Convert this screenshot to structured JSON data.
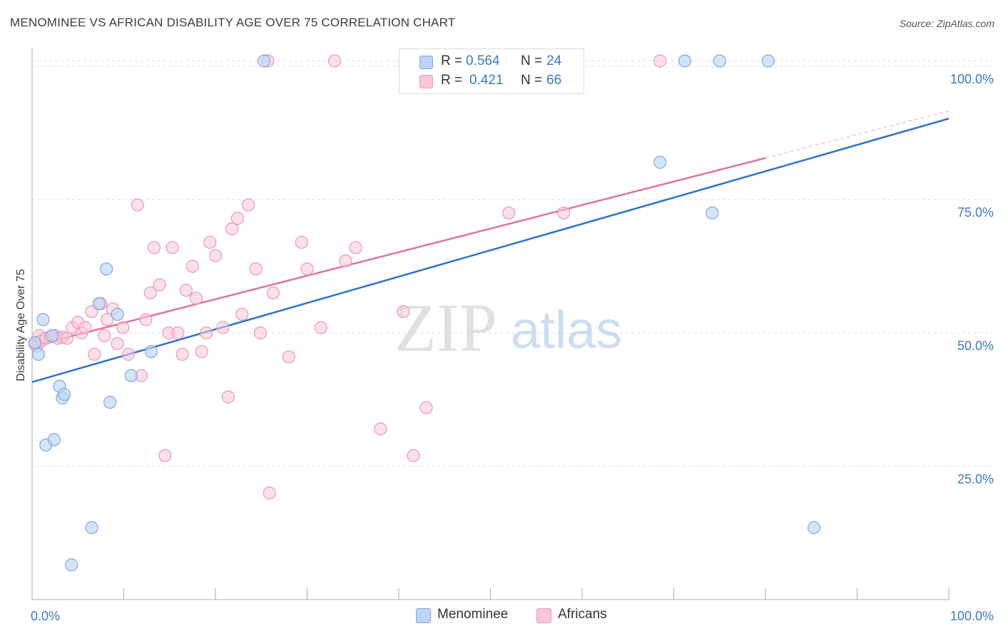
{
  "title": "MENOMINEE VS AFRICAN DISABILITY AGE OVER 75 CORRELATION CHART",
  "source": "Source: ZipAtlas.com",
  "watermark": {
    "zip": "ZIP",
    "atlas": "atlas"
  },
  "colors": {
    "blue_fill": "#bcd5f5",
    "blue_stroke": "#7fa8e0",
    "blue_line": "#2e72c9",
    "pink_fill": "#f8c6d6",
    "pink_stroke": "#eb98b4",
    "pink_line": "#e2709a",
    "grid": "#dddddd",
    "axis": "#aaaaaa",
    "tick_text": "#3d78c9"
  },
  "legend": {
    "rows": [
      {
        "r_label": "R =",
        "r_value": "0.564",
        "n_label": "N =",
        "n_value": "24"
      },
      {
        "r_label": "R =",
        "r_value": "0.421",
        "n_label": "N =",
        "n_value": "66"
      }
    ]
  },
  "bottom_legend": {
    "series1": "Menominee",
    "series2": "Africans"
  },
  "chart_data": {
    "type": "scatter",
    "title": "MENOMINEE VS AFRICAN DISABILITY AGE OVER 75 CORRELATION CHART",
    "ylabel": "Disability Age Over 75",
    "xlabel": "",
    "xlim": [
      0,
      100
    ],
    "ylim": [
      0,
      102
    ],
    "x_tick_labels": [
      "0.0%",
      "100.0%"
    ],
    "y_ticks": [
      25,
      50,
      75,
      100
    ],
    "y_tick_labels": [
      "25.0%",
      "50.0%",
      "75.0%",
      "100.0%"
    ],
    "grid": true,
    "legend_position": "top-center",
    "series": [
      {
        "name": "Menominee",
        "r": 0.564,
        "n": 24,
        "trend": {
          "x": [
            0,
            100
          ],
          "y": [
            40.8,
            90.2
          ]
        },
        "points": [
          [
            0.3,
            48.2
          ],
          [
            0.7,
            46.0
          ],
          [
            1.2,
            52.5
          ],
          [
            1.5,
            29.0
          ],
          [
            2.2,
            49.5
          ],
          [
            2.4,
            30.0
          ],
          [
            3.0,
            40.0
          ],
          [
            3.3,
            37.8
          ],
          [
            3.5,
            38.5
          ],
          [
            6.5,
            13.5
          ],
          [
            7.3,
            55.5
          ],
          [
            8.1,
            62.0
          ],
          [
            8.5,
            37.0
          ],
          [
            9.3,
            53.5
          ],
          [
            10.8,
            42.0
          ],
          [
            13.0,
            46.5
          ],
          [
            25.3,
            101.0
          ],
          [
            68.5,
            82.0
          ],
          [
            71.2,
            101.0
          ],
          [
            74.2,
            72.5
          ],
          [
            75.0,
            101.0
          ],
          [
            80.3,
            101.0
          ],
          [
            85.3,
            13.5
          ],
          [
            4.3,
            6.5
          ]
        ]
      },
      {
        "name": "Africans",
        "r": 0.421,
        "n": 66,
        "trend": {
          "x": [
            0,
            80
          ],
          "y": [
            47.5,
            82.8
          ],
          "dashed_extension": {
            "x": [
              80,
              100
            ],
            "y": [
              82.8,
              91.6
            ]
          }
        },
        "points": [
          [
            0.3,
            48.0
          ],
          [
            0.5,
            47.5
          ],
          [
            0.8,
            49.5
          ],
          [
            1.0,
            48.5
          ],
          [
            1.5,
            49.0
          ],
          [
            2.0,
            49.3
          ],
          [
            2.5,
            49.5
          ],
          [
            2.8,
            49.0
          ],
          [
            3.3,
            49.2
          ],
          [
            3.8,
            49.0
          ],
          [
            4.4,
            51.0
          ],
          [
            5.0,
            52.0
          ],
          [
            5.4,
            50.0
          ],
          [
            5.8,
            51.0
          ],
          [
            6.5,
            54.0
          ],
          [
            6.8,
            46.0
          ],
          [
            7.5,
            55.5
          ],
          [
            7.9,
            49.5
          ],
          [
            8.2,
            52.5
          ],
          [
            8.8,
            54.5
          ],
          [
            9.3,
            48.0
          ],
          [
            9.9,
            51.0
          ],
          [
            10.5,
            46.0
          ],
          [
            11.5,
            74.0
          ],
          [
            11.9,
            42.0
          ],
          [
            12.4,
            52.5
          ],
          [
            12.9,
            57.5
          ],
          [
            13.3,
            66.0
          ],
          [
            13.9,
            59.0
          ],
          [
            14.5,
            27.0
          ],
          [
            14.9,
            50.0
          ],
          [
            15.3,
            66.0
          ],
          [
            15.9,
            50.0
          ],
          [
            16.4,
            46.0
          ],
          [
            16.8,
            58.0
          ],
          [
            17.5,
            62.5
          ],
          [
            17.9,
            56.5
          ],
          [
            18.5,
            46.5
          ],
          [
            19.0,
            50.0
          ],
          [
            19.4,
            67.0
          ],
          [
            20.0,
            64.5
          ],
          [
            20.8,
            51.0
          ],
          [
            21.4,
            38.0
          ],
          [
            21.8,
            69.5
          ],
          [
            22.4,
            71.5
          ],
          [
            22.9,
            53.5
          ],
          [
            23.6,
            74.0
          ],
          [
            24.4,
            62.0
          ],
          [
            24.9,
            50.0
          ],
          [
            25.7,
            101.0
          ],
          [
            25.9,
            20.0
          ],
          [
            26.3,
            57.5
          ],
          [
            28.0,
            45.5
          ],
          [
            29.4,
            67.0
          ],
          [
            30.0,
            62.0
          ],
          [
            31.5,
            51.0
          ],
          [
            33.0,
            101.0
          ],
          [
            34.2,
            63.5
          ],
          [
            35.3,
            66.0
          ],
          [
            38.0,
            32.0
          ],
          [
            40.5,
            54.0
          ],
          [
            41.6,
            27.0
          ],
          [
            43.0,
            36.0
          ],
          [
            52.0,
            72.5
          ],
          [
            58.0,
            72.5
          ],
          [
            68.5,
            101.0
          ]
        ]
      }
    ]
  }
}
